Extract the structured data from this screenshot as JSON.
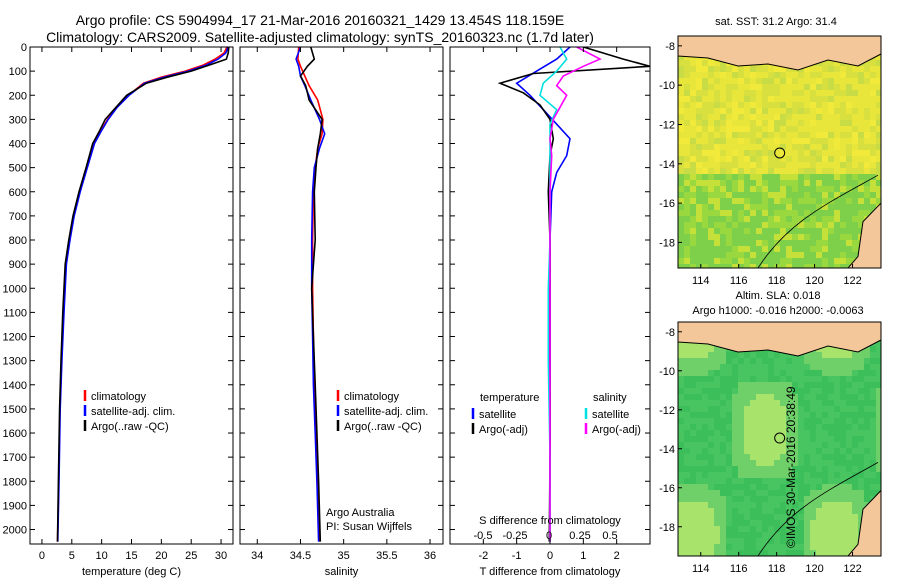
{
  "title_line1": "Argo profile: CS 5904994_17 21-Mar-2016 20160321_1429 13.454S 118.159E",
  "title_line2": "Climatology: CARS2009. Satellite-adjusted climatology: synTS_20160323.nc (1.7d later)",
  "chart_data": [
    {
      "type": "line",
      "xlabel": "temperature (deg C)",
      "xticks": [
        "0",
        "5",
        "10",
        "15",
        "20",
        "25",
        "30"
      ],
      "yticks": [
        "0",
        "100",
        "200",
        "300",
        "400",
        "500",
        "600",
        "700",
        "800",
        "900",
        "1000",
        "1100",
        "1200",
        "1300",
        "1400",
        "1500",
        "1600",
        "1700",
        "1800",
        "1900",
        "2000"
      ],
      "xlim": [
        -2,
        32
      ],
      "ylim": [
        0,
        2060
      ],
      "legend": [
        "climatology",
        "satellite-adj. clim.",
        "Argo(..raw -QC)"
      ],
      "series": [
        {
          "name": "climatology",
          "color": "#ff0000",
          "x": [
            31.0,
            30.5,
            29,
            27,
            24,
            20,
            17,
            14.5,
            12.5,
            11,
            9.8,
            8.7,
            7.5,
            6.3,
            5.3,
            4.6,
            4.0,
            3.6,
            3.3,
            3.0,
            2.8,
            2.6
          ],
          "y": [
            0,
            25,
            50,
            75,
            100,
            125,
            150,
            200,
            250,
            300,
            350,
            400,
            500,
            600,
            700,
            800,
            900,
            1100,
            1300,
            1500,
            1800,
            2050
          ]
        },
        {
          "name": "satellite-adj. clim.",
          "color": "#0000ff",
          "x": [
            31.2,
            30.8,
            29.5,
            27.5,
            24.5,
            20.5,
            17.2,
            14.6,
            12.6,
            11.1,
            9.9,
            8.8,
            7.6,
            6.4,
            5.4,
            4.7,
            4.1,
            3.7,
            3.35,
            3.05,
            2.85,
            2.65
          ],
          "y": [
            0,
            25,
            50,
            75,
            100,
            125,
            150,
            200,
            250,
            300,
            350,
            400,
            500,
            600,
            700,
            800,
            900,
            1100,
            1300,
            1500,
            1800,
            2050
          ]
        },
        {
          "name": "Argo(..raw -QC)",
          "color": "#000000",
          "x": [
            31.3,
            31.2,
            30.9,
            28,
            25,
            21,
            17.5,
            14.2,
            12.4,
            10.6,
            9.6,
            8.5,
            7.4,
            6.2,
            5.2,
            4.5,
            3.9,
            3.5,
            3.2,
            2.95,
            2.75,
            2.6
          ],
          "y": [
            0,
            25,
            50,
            75,
            100,
            125,
            150,
            200,
            250,
            300,
            350,
            400,
            500,
            600,
            700,
            800,
            900,
            1100,
            1300,
            1500,
            1800,
            2050
          ]
        }
      ]
    },
    {
      "type": "line",
      "xlabel": "salinity",
      "xticks": [
        "34",
        "34.5",
        "35",
        "35.5",
        "36"
      ],
      "xlim": [
        33.8,
        36.15
      ],
      "ylim": [
        0,
        2060
      ],
      "legend": [
        "climatology",
        "satellite-adj. clim.",
        "Argo(..raw -QC)"
      ],
      "annotation": [
        "Argo Australia",
        "PI: Susan Wijffels"
      ],
      "series": [
        {
          "name": "climatology",
          "color": "#ff0000",
          "x": [
            34.48,
            34.47,
            34.5,
            34.55,
            34.6,
            34.7,
            34.76,
            34.75,
            34.7,
            34.67,
            34.65,
            34.64,
            34.64,
            34.65,
            34.66,
            34.68,
            34.7,
            34.72
          ],
          "y": [
            0,
            50,
            80,
            120,
            160,
            220,
            300,
            360,
            420,
            500,
            600,
            800,
            1000,
            1200,
            1400,
            1600,
            1800,
            2050
          ]
        },
        {
          "name": "satellite-adj. clim.",
          "color": "#0000ff",
          "x": [
            34.5,
            34.45,
            34.48,
            34.5,
            34.55,
            34.62,
            34.72,
            34.78,
            34.72,
            34.66,
            34.64,
            34.63,
            34.63,
            34.64,
            34.65,
            34.67,
            34.69,
            34.71
          ],
          "y": [
            0,
            50,
            80,
            120,
            160,
            220,
            300,
            360,
            420,
            500,
            600,
            800,
            1000,
            1200,
            1400,
            1600,
            1800,
            2050
          ]
        },
        {
          "name": "Argo(..raw -QC)",
          "color": "#000000",
          "x": [
            34.62,
            34.66,
            34.58,
            34.5,
            34.56,
            34.6,
            34.75,
            34.73,
            34.7,
            34.68,
            34.66,
            34.67,
            34.63,
            34.65,
            34.67,
            34.69,
            34.71,
            34.73
          ],
          "y": [
            0,
            50,
            80,
            120,
            160,
            220,
            300,
            360,
            420,
            500,
            600,
            800,
            1000,
            1200,
            1400,
            1600,
            1800,
            2050
          ]
        }
      ]
    },
    {
      "type": "line",
      "xlabel": "T difference from climatology",
      "xticks": [
        "-2",
        "-1",
        "0",
        "1",
        "2"
      ],
      "xlim": [
        -3,
        3
      ],
      "secondary_axis": {
        "label": "S difference from climatology",
        "ticks": [
          "-0.5",
          "-0.25",
          "0",
          "0.25",
          "0.5"
        ]
      },
      "ylim": [
        0,
        2060
      ],
      "legend_groups": [
        {
          "heading": "temperature",
          "items": [
            "satellite",
            "Argo(-adj)"
          ]
        },
        {
          "heading": "salinity",
          "items": [
            "satellite",
            "Argo(-adj)"
          ]
        }
      ],
      "series": [
        {
          "name": "temperature satellite",
          "color": "#0000ff",
          "x": [
            0.6,
            0.2,
            -0.4,
            -1.0,
            -0.6,
            -0.2,
            0.2,
            0.6,
            0.5,
            0.2,
            0.05,
            0.0,
            0.0,
            0.0,
            0.0,
            0.0
          ],
          "y": [
            0,
            50,
            100,
            150,
            200,
            260,
            320,
            380,
            450,
            520,
            600,
            800,
            1000,
            1300,
            1700,
            2050
          ]
        },
        {
          "name": "temperature Argo(-adj)",
          "color": "#000000",
          "x": [
            1.0,
            2.2,
            3.0,
            -0.5,
            -1.5,
            -0.8,
            -0.3,
            0.0,
            0.1,
            0.0,
            -0.05,
            0.0,
            0.0,
            0.0,
            0.0,
            -0.02
          ],
          "y": [
            0,
            50,
            80,
            110,
            150,
            190,
            240,
            300,
            380,
            450,
            600,
            800,
            1000,
            1300,
            1700,
            2050
          ]
        },
        {
          "name": "salinity satellite",
          "color": "#00e0e0",
          "x": [
            0.3,
            0.5,
            0.2,
            -0.2,
            -0.3,
            0.2,
            0.0,
            0.0,
            0.0,
            0.0,
            0.0,
            0.0,
            -0.05,
            -0.05,
            0.0,
            0.0
          ],
          "y": [
            0,
            50,
            100,
            150,
            200,
            260,
            320,
            380,
            450,
            520,
            600,
            800,
            1000,
            1300,
            1700,
            2050
          ]
        },
        {
          "name": "salinity Argo(-adj)",
          "color": "#ff00ff",
          "x": [
            0.8,
            1.5,
            1.0,
            0.4,
            0.2,
            0.5,
            0.3,
            0.1,
            0.0,
            0.05,
            0.0,
            0.0,
            0.0,
            0.0,
            0.0,
            0.0
          ],
          "y": [
            0,
            50,
            80,
            120,
            160,
            200,
            250,
            300,
            380,
            450,
            600,
            800,
            1000,
            1300,
            1700,
            2050
          ]
        }
      ]
    }
  ],
  "maps": [
    {
      "title": "sat. SST: 31.2 Argo: 31.4",
      "xticks": [
        "114",
        "116",
        "118",
        "120",
        "122"
      ],
      "yticks": [
        "-8",
        "-10",
        "-12",
        "-14",
        "-16",
        "-18"
      ],
      "marker_lon": 118.16,
      "marker_lat": -13.45
    },
    {
      "title_line1": "Altim. SLA: 0.018",
      "title_line2": "Argo h1000: -0.016 h2000: -0.0063",
      "xticks": [
        "114",
        "116",
        "118",
        "120",
        "122"
      ],
      "yticks": [
        "-8",
        "-10",
        "-12",
        "-14",
        "-16",
        "-18"
      ],
      "marker_lon": 118.16,
      "marker_lat": -13.45
    }
  ],
  "footer": "©IMOS 30-Mar-2016 20:38:49"
}
